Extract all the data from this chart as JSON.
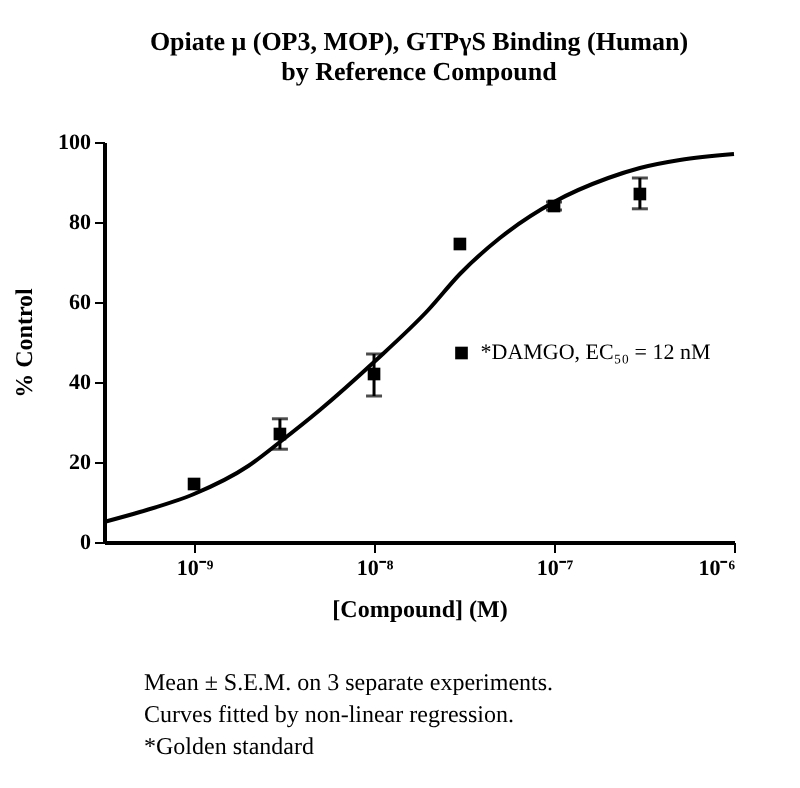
{
  "chart_data": {
    "type": "scatter",
    "title": "Opiate μ (OP3, MOP), GTPγS Binding (Human)\nby Reference Compound",
    "xlabel": "[Compound] (M)",
    "ylabel": "% Control",
    "log": "x",
    "xlim": [
      3.16e-10,
      1e-06
    ],
    "xticks": [
      {
        "value": 1e-09,
        "label": "10⁻⁹"
      },
      {
        "value": 1e-08,
        "label": "10⁻⁸"
      },
      {
        "value": 1e-07,
        "label": "10⁻⁷"
      },
      {
        "value": 1e-06,
        "label": "10⁻⁶"
      }
    ],
    "ylim": [
      0,
      100
    ],
    "yticks": [
      0,
      20,
      40,
      60,
      80,
      100
    ],
    "grid": false,
    "legend": "right",
    "marker": "square",
    "series": [
      {
        "name": "*DAMGO, EC₅₀ = 12 nM",
        "color": "#000000",
        "x": [
          1e-09,
          3e-09,
          1e-08,
          3e-08,
          1e-07,
          3e-07
        ],
        "values": [
          14.5,
          27,
          42,
          74.5,
          84,
          87
        ],
        "errors": [
          null,
          [
            23.2,
            30.8
          ],
          [
            36.5,
            47
          ],
          null,
          [
            83,
            85
          ],
          [
            83.3,
            91
          ]
        ]
      },
      {
        "type": "line",
        "color": "#000000",
        "line_style": "solid",
        "marker": "none",
        "x": [
          3.16e-10,
          5e-10,
          1e-09,
          2e-09,
          3e-09,
          5e-09,
          1e-08,
          2e-08,
          3e-08,
          5e-08,
          1e-07,
          2e-07,
          3e-07,
          5e-07,
          1e-06
        ],
        "values": [
          5,
          7.5,
          12,
          19,
          25,
          33,
          45,
          58,
          67,
          76,
          85,
          91,
          93.5,
          95.5,
          97
        ]
      }
    ],
    "annotations": [
      "Mean ± S.E.M. on 3 separate experiments.",
      "Curves fitted by non-linear regression.",
      "*Golden standard"
    ]
  }
}
